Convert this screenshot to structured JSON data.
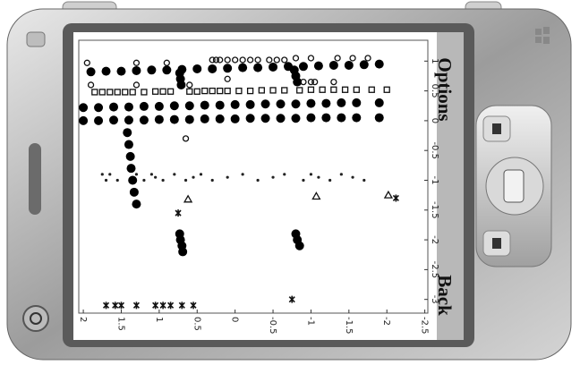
{
  "screen": {
    "softkeys": {
      "top": "Options",
      "bottom": "Back"
    }
  },
  "chart_data": {
    "type": "scatter",
    "xlim": [
      2.06,
      -2.54
    ],
    "ylim": [
      -3.23,
      1.35
    ],
    "xticks": [
      2,
      1.5,
      1,
      0.5,
      0,
      -0.5,
      -1,
      -1.5,
      -2,
      -2.5
    ],
    "yticks": [
      1,
      0.5,
      0,
      -0.5,
      -1,
      -1.5,
      -2,
      -2.5,
      -3
    ],
    "series": [
      {
        "marker": "circle",
        "color": "#111111",
        "x": [
          1.95,
          1.3,
          0.9,
          0.3,
          0.25,
          0.2,
          0.1,
          0,
          -0.1,
          -0.2,
          -0.3,
          -0.45,
          -0.55,
          -0.65,
          -0.8,
          -1.0,
          -1.35,
          -1.55,
          -1.75,
          -1.0,
          -1.3,
          1.9,
          1.3,
          0.6,
          0.1,
          -0.9,
          -1.05,
          0.65
        ],
        "y": [
          0.97,
          0.97,
          0.97,
          1.02,
          1.02,
          1.02,
          1.02,
          1.02,
          1.02,
          1.02,
          1.02,
          1.02,
          1.02,
          1.02,
          1.05,
          1.05,
          1.05,
          1.05,
          1.05,
          0.65,
          0.65,
          0.6,
          0.6,
          0.6,
          0.7,
          0.65,
          0.65,
          -0.3
        ]
      },
      {
        "marker": "square",
        "color": "#111111",
        "x": [
          1.85,
          1.75,
          1.65,
          1.55,
          1.45,
          1.35,
          1.2,
          1.05,
          0.95,
          0.85,
          0.6,
          0.5,
          0.4,
          0.3,
          0.2,
          0.1,
          -0.05,
          -0.2,
          -0.35,
          -0.5,
          -0.65,
          -0.85,
          -1.0,
          -1.15,
          -1.3,
          -1.45,
          -1.6,
          -1.8,
          -2.0
        ],
        "y": [
          0.48,
          0.48,
          0.48,
          0.48,
          0.48,
          0.48,
          0.48,
          0.49,
          0.49,
          0.49,
          0.49,
          0.49,
          0.5,
          0.5,
          0.5,
          0.5,
          0.5,
          0.5,
          0.51,
          0.51,
          0.51,
          0.51,
          0.52,
          0.52,
          0.52,
          0.52,
          0.52,
          0.52,
          0.52
        ]
      },
      {
        "marker": "heavy",
        "color": "#000000",
        "x": [
          1.9,
          1.7,
          1.5,
          1.3,
          1.1,
          0.9,
          0.7,
          0.5,
          0.3,
          0.1,
          -0.1,
          -0.3,
          -0.5,
          -0.7,
          -0.9,
          -1.1,
          -1.3,
          -1.5,
          -1.7,
          -1.9,
          2.0,
          1.8,
          1.6,
          1.4,
          1.2,
          1.0,
          0.8,
          0.6,
          0.4,
          0.2,
          0.0,
          -0.2,
          -0.4,
          -0.6,
          -0.8,
          -1.0,
          -1.2,
          -1.4,
          -1.6,
          -1.9,
          2.0,
          1.8,
          1.6,
          1.4,
          1.2,
          1.0,
          0.8,
          0.6,
          0.4,
          0.2,
          0.0,
          -0.2,
          -0.4,
          -0.6,
          -0.8,
          -1.0,
          -1.2,
          -1.4,
          -1.6,
          -1.9,
          1.42,
          1.4,
          1.38,
          1.37,
          1.35,
          1.33,
          1.3,
          0.73,
          0.72,
          0.71,
          -0.78,
          -0.8,
          -0.82,
          0.73,
          0.72,
          0.7,
          0.69,
          -0.8,
          -0.82,
          -0.85
        ],
        "y": [
          0.82,
          0.83,
          0.83,
          0.84,
          0.85,
          0.85,
          0.86,
          0.87,
          0.87,
          0.88,
          0.89,
          0.89,
          0.9,
          0.91,
          0.91,
          0.92,
          0.93,
          0.93,
          0.94,
          0.95,
          0.22,
          0.22,
          0.23,
          0.23,
          0.24,
          0.24,
          0.25,
          0.25,
          0.26,
          0.26,
          0.27,
          0.27,
          0.28,
          0.28,
          0.28,
          0.29,
          0.29,
          0.3,
          0.3,
          0.3,
          0.0,
          0.0,
          0.01,
          0.01,
          0.01,
          0.02,
          0.02,
          0.02,
          0.03,
          0.03,
          0.03,
          0.04,
          0.04,
          0.04,
          0.04,
          0.05,
          0.05,
          0.05,
          0.05,
          0.05,
          -0.2,
          -0.4,
          -0.6,
          -0.8,
          -1.0,
          -1.2,
          -1.4,
          0.8,
          0.7,
          0.6,
          0.85,
          0.75,
          0.65,
          -1.9,
          -2.0,
          -2.1,
          -2.2,
          -1.9,
          -2.0,
          -2.1
        ]
      },
      {
        "marker": "dot",
        "color": "#222222",
        "x": [
          1.75,
          1.7,
          1.65,
          1.55,
          1.3,
          1.2,
          1.1,
          1.05,
          0.95,
          0.8,
          0.65,
          0.55,
          0.45,
          0.3,
          0.1,
          -0.1,
          -0.3,
          -0.5,
          -0.65,
          -0.9,
          -1.0,
          -1.1,
          -1.25,
          -1.4,
          -1.55,
          -1.7
        ],
        "y": [
          -0.9,
          -1.0,
          -0.9,
          -1.0,
          -0.9,
          -1.0,
          -0.9,
          -0.95,
          -1.0,
          -0.9,
          -1.0,
          -0.95,
          -0.9,
          -1.0,
          -0.95,
          -0.9,
          -1.0,
          -0.95,
          -0.9,
          -1.0,
          -0.9,
          -0.95,
          -1.0,
          -0.9,
          -0.95,
          -1.0
        ]
      },
      {
        "marker": "triangle",
        "color": "#111111",
        "x": [
          0.62,
          -1.07,
          -2.02
        ],
        "y": [
          -1.32,
          -1.27,
          -1.25
        ]
      },
      {
        "marker": "star",
        "color": "#111111",
        "x": [
          1.7,
          1.58,
          1.5,
          1.3,
          1.05,
          0.95,
          0.85,
          0.7,
          0.55,
          -0.75,
          0.75,
          -2.12
        ],
        "y": [
          -3.1,
          -3.1,
          -3.1,
          -3.1,
          -3.1,
          -3.1,
          -3.1,
          -3.1,
          -3.1,
          -3.0,
          -1.55,
          -1.3
        ]
      }
    ]
  }
}
